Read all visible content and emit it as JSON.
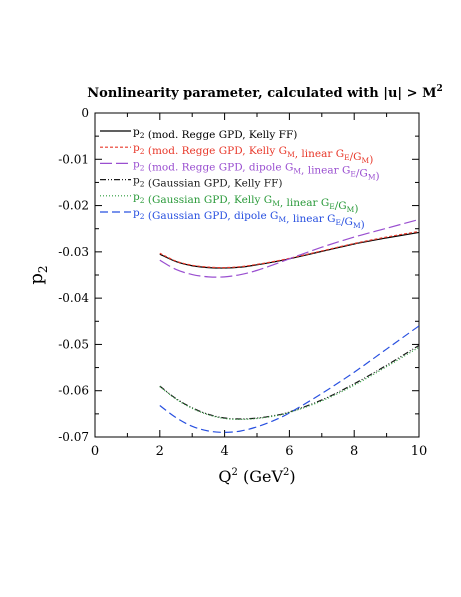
{
  "chart_data": {
    "type": "line",
    "title_prefix": "Nonlinearity parameter, calculated with ",
    "title_math": "|u| > M",
    "title_sup": "2",
    "xlabel_main": "Q",
    "xlabel_sup": "2",
    "xlabel_unit": " (GeV",
    "xlabel_unit_sup": "2",
    "xlabel_close": ")",
    "ylabel_main": "p",
    "ylabel_sub": "2",
    "xlim": [
      0,
      10
    ],
    "ylim": [
      -0.07,
      0
    ],
    "x_ticks": [
      0,
      2,
      4,
      6,
      8,
      10
    ],
    "x_tick_labels": [
      "0",
      "2",
      "4",
      "6",
      "8",
      "10"
    ],
    "y_ticks": [
      0,
      -0.01,
      -0.02,
      -0.03,
      -0.04,
      -0.05,
      -0.06,
      -0.07
    ],
    "y_tick_labels": [
      "0",
      "-0.01",
      "-0.02",
      "-0.03",
      "-0.04",
      "-0.05",
      "-0.06",
      "-0.07"
    ],
    "grid": false,
    "legend_position": "top-left",
    "series": [
      {
        "legend": [
          {
            "t": "p"
          },
          {
            "t": "2",
            "sub": true
          },
          {
            "t": " (mod. Regge GPD, Kelly FF)"
          }
        ],
        "color": "#000000",
        "dash": "",
        "x": [
          2,
          2.5,
          3,
          3.5,
          4,
          4.5,
          5,
          5.5,
          6,
          7,
          8,
          9,
          10
        ],
        "y": [
          -0.0305,
          -0.0321,
          -0.033,
          -0.0334,
          -0.0335,
          -0.0333,
          -0.0328,
          -0.0322,
          -0.0315,
          -0.0299,
          -0.0283,
          -0.027,
          -0.0258
        ]
      },
      {
        "legend": [
          {
            "t": "p"
          },
          {
            "t": "2",
            "sub": true
          },
          {
            "t": " (mod. Regge GPD, Kelly G"
          },
          {
            "t": "M",
            "sub": true
          },
          {
            "t": ", linear G"
          },
          {
            "t": "E",
            "sub": true
          },
          {
            "t": "/G"
          },
          {
            "t": "M",
            "sub": true
          },
          {
            "t": ")"
          }
        ],
        "color": "#e8382a",
        "dash": "3,2",
        "x": [
          2,
          2.5,
          3,
          3.5,
          4,
          4.5,
          5,
          5.5,
          6,
          7,
          8,
          9,
          10
        ],
        "y": [
          -0.0303,
          -0.032,
          -0.0329,
          -0.0333,
          -0.0334,
          -0.0332,
          -0.0327,
          -0.0321,
          -0.0314,
          -0.0298,
          -0.0282,
          -0.0268,
          -0.0256
        ]
      },
      {
        "legend": [
          {
            "t": "p"
          },
          {
            "t": "2",
            "sub": true
          },
          {
            "t": " (mod. Regge GPD, dipole G"
          },
          {
            "t": "M",
            "sub": true
          },
          {
            "t": ", linear G"
          },
          {
            "t": "E",
            "sub": true
          },
          {
            "t": "/G"
          },
          {
            "t": "M",
            "sub": true
          },
          {
            "t": ")"
          }
        ],
        "color": "#9a4fd0",
        "dash": "12,4",
        "x": [
          2,
          2.5,
          3,
          3.5,
          4,
          4.5,
          5,
          5.5,
          6,
          7,
          8,
          9,
          10
        ],
        "y": [
          -0.0318,
          -0.0338,
          -0.0349,
          -0.0354,
          -0.0354,
          -0.0349,
          -0.034,
          -0.0328,
          -0.0315,
          -0.029,
          -0.0268,
          -0.0249,
          -0.023
        ]
      },
      {
        "legend": [
          {
            "t": "p"
          },
          {
            "t": "2",
            "sub": true
          },
          {
            "t": " (Gaussian GPD, Kelly FF)"
          }
        ],
        "color": "#1a1a1a",
        "dash": "6,2,1,2,1,2",
        "x": [
          2,
          2.5,
          3,
          3.5,
          4,
          4.5,
          5,
          5.5,
          6,
          7,
          8,
          9,
          10
        ],
        "y": [
          -0.059,
          -0.0617,
          -0.0637,
          -0.0651,
          -0.0659,
          -0.0661,
          -0.0659,
          -0.0654,
          -0.0646,
          -0.062,
          -0.0585,
          -0.0545,
          -0.0502
        ]
      },
      {
        "legend": [
          {
            "t": "p"
          },
          {
            "t": "2",
            "sub": true
          },
          {
            "t": " (Gaussian GPD, Kelly G"
          },
          {
            "t": "M",
            "sub": true
          },
          {
            "t": ", linear G"
          },
          {
            "t": "E",
            "sub": true
          },
          {
            "t": "/G"
          },
          {
            "t": "M",
            "sub": true
          },
          {
            "t": ")"
          }
        ],
        "color": "#2a9a3a",
        "dash": "1,2",
        "x": [
          2,
          2.5,
          3,
          3.5,
          4,
          4.5,
          5,
          5.5,
          6,
          7,
          8,
          9,
          10
        ],
        "y": [
          -0.0591,
          -0.0618,
          -0.0638,
          -0.0652,
          -0.066,
          -0.0662,
          -0.066,
          -0.0655,
          -0.0647,
          -0.0622,
          -0.0588,
          -0.0548,
          -0.0506
        ]
      },
      {
        "legend": [
          {
            "t": "p"
          },
          {
            "t": "2",
            "sub": true
          },
          {
            "t": " (Gaussian GPD, dipole G"
          },
          {
            "t": "M",
            "sub": true
          },
          {
            "t": ", linear G"
          },
          {
            "t": "E",
            "sub": true
          },
          {
            "t": "/G"
          },
          {
            "t": "M",
            "sub": true
          },
          {
            "t": ")"
          }
        ],
        "color": "#2850e0",
        "dash": "8,4",
        "x": [
          2,
          2.5,
          3,
          3.5,
          4,
          4.5,
          5,
          5.5,
          6,
          7,
          8,
          9,
          10
        ],
        "y": [
          -0.0632,
          -0.0658,
          -0.0677,
          -0.0687,
          -0.069,
          -0.0687,
          -0.0678,
          -0.0665,
          -0.0648,
          -0.0606,
          -0.056,
          -0.051,
          -0.046
        ]
      }
    ]
  }
}
